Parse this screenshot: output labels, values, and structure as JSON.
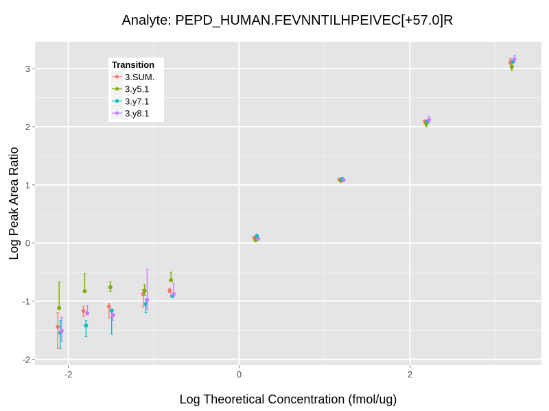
{
  "chart_data": {
    "type": "scatter",
    "title": "Analyte: PEPD_HUMAN.FEVNNTILHPEIVEC[+57.0]R",
    "xlabel": "Log Theoretical Concentration (fmol/ug)",
    "ylabel": "Log Peak Area Ratio",
    "xlim": [
      -2.39,
      3.54
    ],
    "ylim": [
      -2.1,
      3.46
    ],
    "x_ticks": [
      -2,
      0,
      2
    ],
    "x_tick_labels": [
      "-2",
      "0",
      "2"
    ],
    "y_ticks": [
      -2,
      -1,
      0,
      1,
      2,
      3
    ],
    "y_tick_labels": [
      "-2",
      "-1",
      "0",
      "1",
      "2",
      "3"
    ],
    "grid": true,
    "legend": {
      "title": "Transition",
      "placement": "top-left",
      "entries": [
        "3.SUM.",
        "3.y5.1",
        "3.y7.1",
        "3.y8.1"
      ]
    },
    "series": [
      {
        "name": "3.SUM.",
        "color": "#F8766D",
        "points": [
          {
            "x": -2.1,
            "y": -1.44,
            "ymin": -1.81,
            "ymax": -1.2
          },
          {
            "x": -1.8,
            "y": -1.17,
            "ymin": -1.27,
            "ymax": -1.09
          },
          {
            "x": -1.5,
            "y": -1.09,
            "ymin": -1.29,
            "ymax": -1.04
          },
          {
            "x": -1.1,
            "y": -0.88,
            "ymin": -1.1,
            "ymax": -0.8
          },
          {
            "x": -0.79,
            "y": -0.82,
            "ymin": -0.86,
            "ymax": -0.78
          },
          {
            "x": 0.2,
            "y": 0.09,
            "ymin": 0.07,
            "ymax": 0.11
          },
          {
            "x": 1.2,
            "y": 1.09,
            "ymin": 1.07,
            "ymax": 1.11
          },
          {
            "x": 2.2,
            "y": 2.09,
            "ymin": 2.06,
            "ymax": 2.11
          },
          {
            "x": 3.2,
            "y": 3.11,
            "ymin": 3.07,
            "ymax": 3.17
          }
        ]
      },
      {
        "name": "3.y5.1",
        "color": "#7CAE00",
        "points": [
          {
            "x": -2.1,
            "y": -1.12,
            "ymin": -1.12,
            "ymax": -0.67
          },
          {
            "x": -1.8,
            "y": -0.83,
            "ymin": -0.83,
            "ymax": -0.53
          },
          {
            "x": -1.5,
            "y": -0.76,
            "ymin": -0.83,
            "ymax": -0.67
          },
          {
            "x": -1.1,
            "y": -0.82,
            "ymin": -0.9,
            "ymax": -0.72
          },
          {
            "x": -0.79,
            "y": -0.64,
            "ymin": -0.64,
            "ymax": -0.5
          },
          {
            "x": 0.2,
            "y": 0.05,
            "ymin": 0.03,
            "ymax": 0.07
          },
          {
            "x": 1.2,
            "y": 1.07,
            "ymin": 1.05,
            "ymax": 1.09
          },
          {
            "x": 2.2,
            "y": 2.05,
            "ymin": 2.0,
            "ymax": 2.07
          },
          {
            "x": 3.2,
            "y": 3.03,
            "ymin": 2.97,
            "ymax": 3.08
          }
        ]
      },
      {
        "name": "3.y7.1",
        "color": "#00BFC4",
        "points": [
          {
            "x": -2.1,
            "y": -1.54,
            "ymin": -1.81,
            "ymax": -1.33
          },
          {
            "x": -1.8,
            "y": -1.42,
            "ymin": -1.61,
            "ymax": -1.33
          },
          {
            "x": -1.5,
            "y": -1.16,
            "ymin": -1.57,
            "ymax": -1.16
          },
          {
            "x": -1.1,
            "y": -1.05,
            "ymin": -1.2,
            "ymax": -0.97
          },
          {
            "x": -0.79,
            "y": -0.91,
            "ymin": -0.92,
            "ymax": -0.9
          },
          {
            "x": 0.2,
            "y": 0.12,
            "ymin": 0.1,
            "ymax": 0.14
          },
          {
            "x": 1.2,
            "y": 1.1,
            "ymin": 1.08,
            "ymax": 1.11
          },
          {
            "x": 2.2,
            "y": 2.09,
            "ymin": 2.07,
            "ymax": 2.11
          },
          {
            "x": 3.2,
            "y": 3.12,
            "ymin": 3.1,
            "ymax": 3.15
          }
        ]
      },
      {
        "name": "3.y8.1",
        "color": "#C77CFF",
        "points": [
          {
            "x": -2.1,
            "y": -1.51,
            "ymin": -1.69,
            "ymax": -1.28
          },
          {
            "x": -1.8,
            "y": -1.21,
            "ymin": -1.24,
            "ymax": -1.07
          },
          {
            "x": -1.5,
            "y": -1.24,
            "ymin": -1.33,
            "ymax": -1.21
          },
          {
            "x": -1.1,
            "y": -0.98,
            "ymin": -1.14,
            "ymax": -0.45
          },
          {
            "x": -0.79,
            "y": -0.88,
            "ymin": -0.92,
            "ymax": -0.69
          },
          {
            "x": 0.2,
            "y": 0.07,
            "ymin": 0.05,
            "ymax": 0.09
          },
          {
            "x": 1.2,
            "y": 1.08,
            "ymin": 1.06,
            "ymax": 1.1
          },
          {
            "x": 2.2,
            "y": 2.12,
            "ymin": 2.07,
            "ymax": 2.18
          },
          {
            "x": 3.2,
            "y": 3.16,
            "ymin": 3.11,
            "ymax": 3.23
          }
        ]
      }
    ]
  }
}
